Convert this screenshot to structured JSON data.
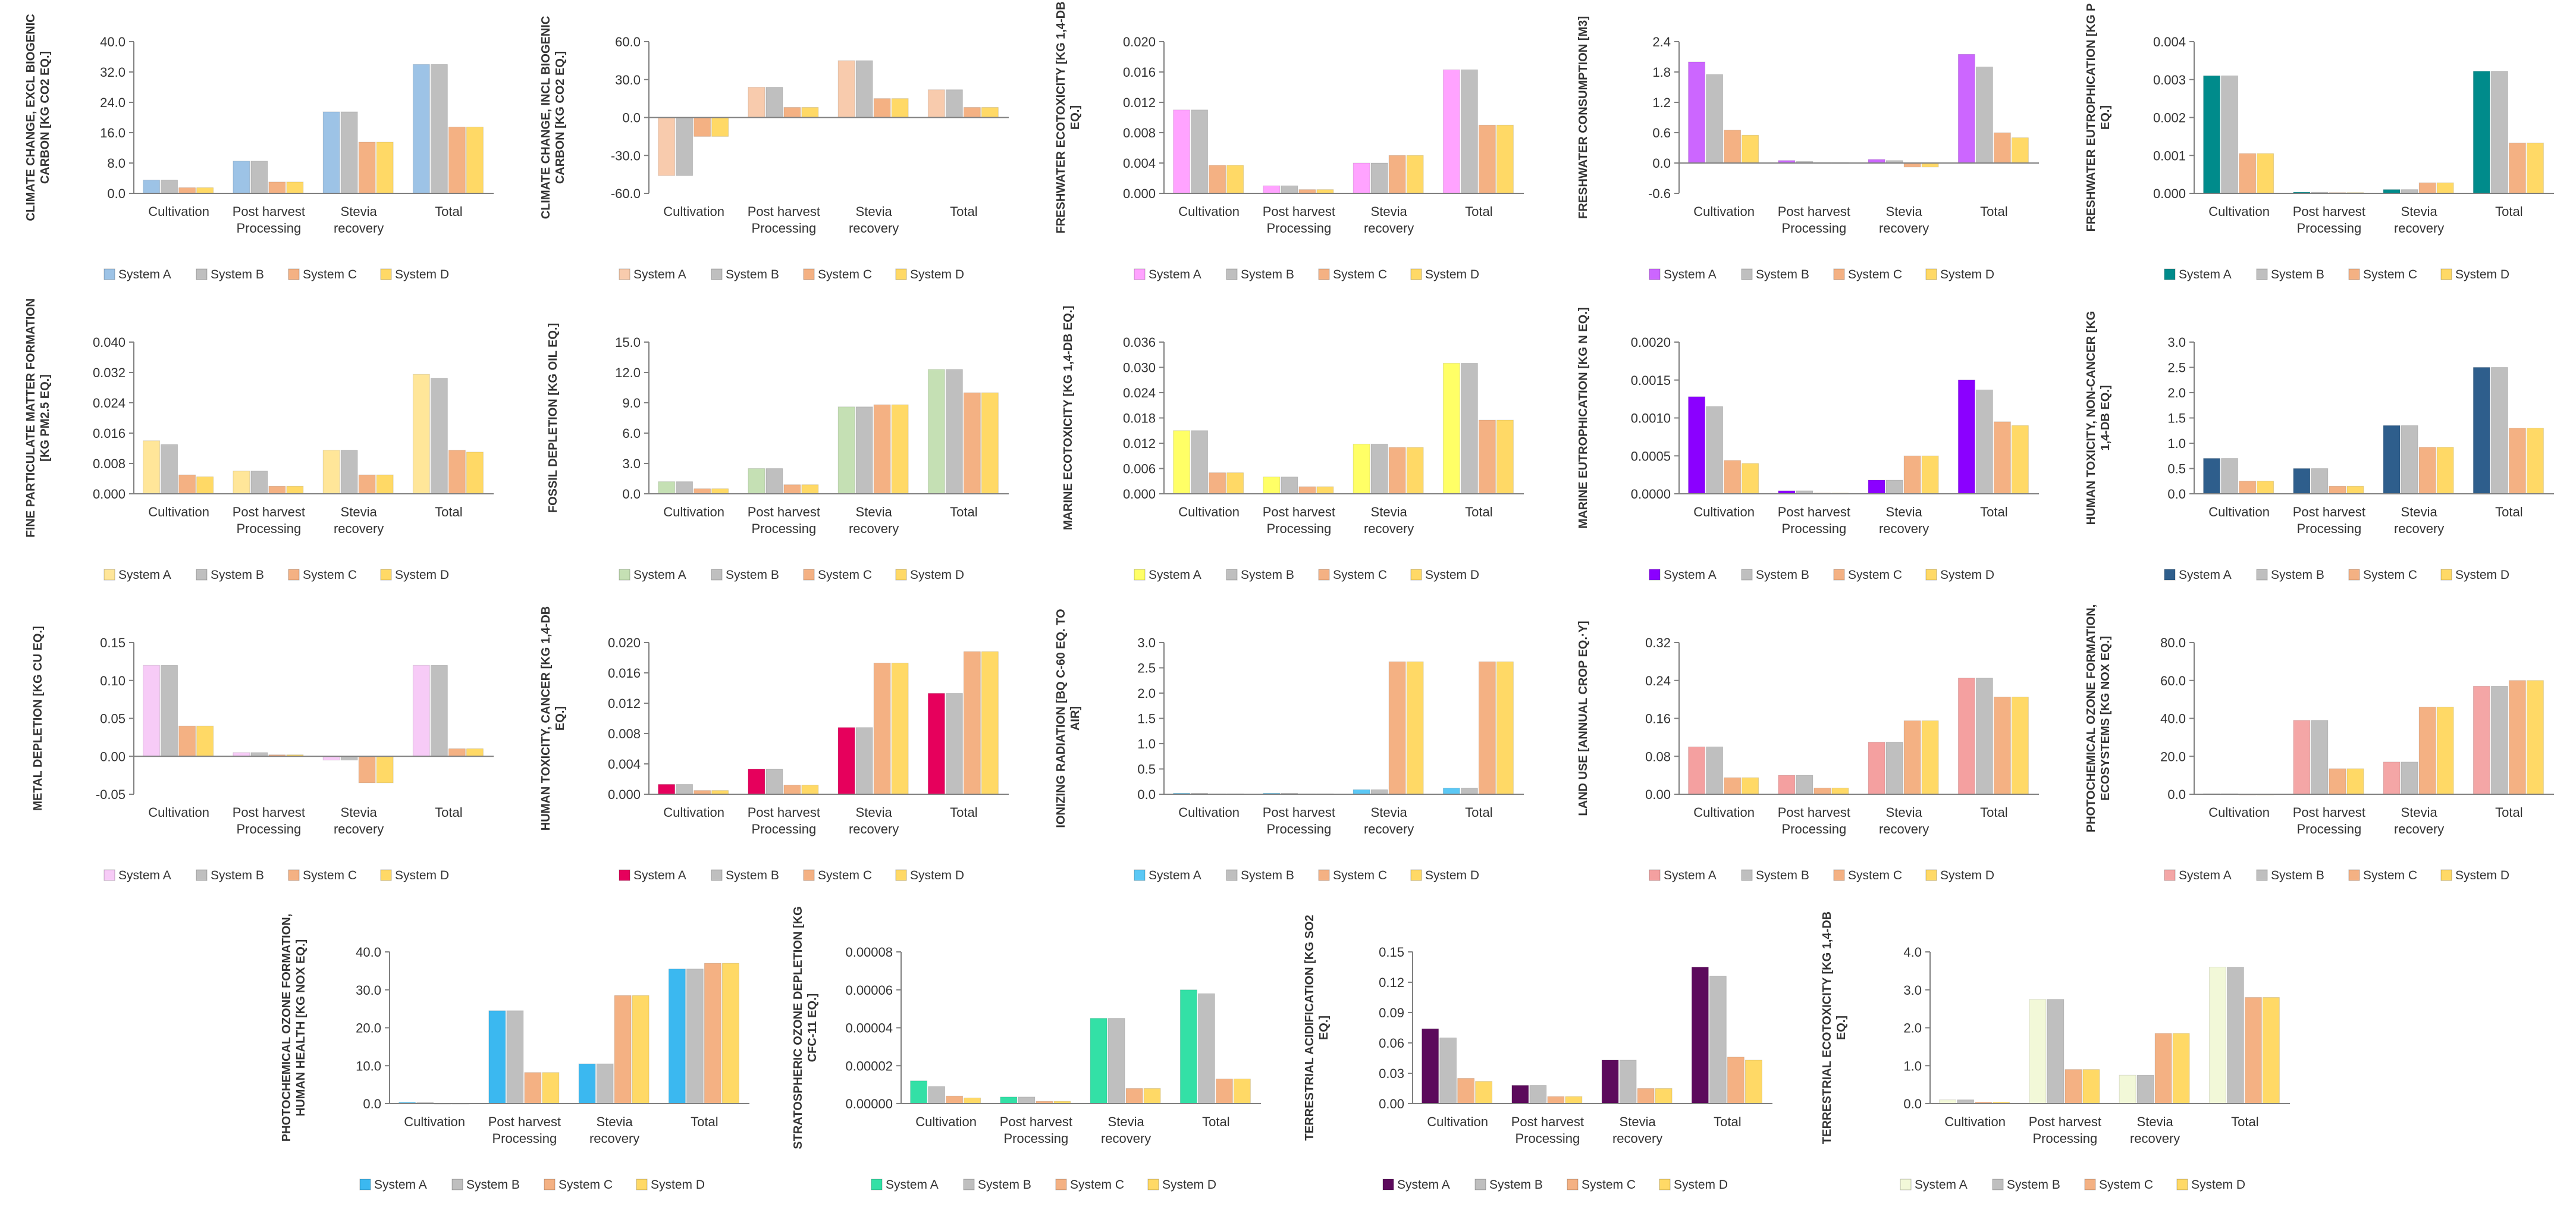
{
  "categories": [
    "Cultivation",
    "Post harvest Processing",
    "Stevia recovery",
    "Total"
  ],
  "series_names": [
    "System A",
    "System B",
    "System C",
    "System D"
  ],
  "chart_data": [
    {
      "type": "bar",
      "ylabel": "CLIMATE CHANGE, EXCL BIOGENIC CARBON [KG CO2 EQ.]",
      "ylim": [
        0,
        40
      ],
      "ticks": [
        "0.0",
        "8.0",
        "16.0",
        "24.0",
        "32.0",
        "40.0"
      ],
      "colors": [
        "#9DC3E6",
        "#BFBFBF",
        "#F4B183",
        "#FFD966"
      ],
      "series": [
        {
          "name": "System A",
          "values": [
            3.5,
            8.5,
            21.5,
            34
          ]
        },
        {
          "name": "System B",
          "values": [
            3.5,
            8.5,
            21.5,
            34
          ]
        },
        {
          "name": "System C",
          "values": [
            1.5,
            3,
            13.5,
            17.5
          ]
        },
        {
          "name": "System D",
          "values": [
            1.5,
            3,
            13.5,
            17.5
          ]
        }
      ]
    },
    {
      "type": "bar",
      "ylabel": "CLIMATE CHANGE, INCL BIOGENIC CARBON [KG CO2 EQ.]",
      "ylim": [
        -60,
        60
      ],
      "ticks": [
        "-60.0",
        "-30.0",
        "0.0",
        "30.0",
        "60.0"
      ],
      "colors": [
        "#F8CBAD",
        "#BFBFBF",
        "#F4B183",
        "#FFD966"
      ],
      "series": [
        {
          "name": "System A",
          "values": [
            -46,
            24,
            45,
            22
          ]
        },
        {
          "name": "System B",
          "values": [
            -46,
            24,
            45,
            22
          ]
        },
        {
          "name": "System C",
          "values": [
            -15,
            8,
            15,
            8
          ]
        },
        {
          "name": "System D",
          "values": [
            -15,
            8,
            15,
            8
          ]
        }
      ]
    },
    {
      "type": "bar",
      "ylabel": "FRESHWATER ECOTOXICITY [KG 1,4-DB EQ.]",
      "ylim": [
        0,
        0.02
      ],
      "ticks": [
        "0.000",
        "0.004",
        "0.008",
        "0.012",
        "0.016",
        "0.020"
      ],
      "colors": [
        "#FFA3FF",
        "#BFBFBF",
        "#F4B183",
        "#FFD966"
      ],
      "series": [
        {
          "name": "System A",
          "values": [
            0.011,
            0.001,
            0.004,
            0.0163
          ]
        },
        {
          "name": "System B",
          "values": [
            0.011,
            0.001,
            0.004,
            0.0163
          ]
        },
        {
          "name": "System C",
          "values": [
            0.0037,
            0.0005,
            0.005,
            0.009
          ]
        },
        {
          "name": "System D",
          "values": [
            0.0037,
            0.0005,
            0.005,
            0.009
          ]
        }
      ]
    },
    {
      "type": "bar",
      "ylabel": "FRESHWATER CONSUMPTION [M3]",
      "ylim": [
        -0.6,
        2.4
      ],
      "ticks": [
        "-0.6",
        "0.0",
        "0.6",
        "1.2",
        "1.8",
        "2.4"
      ],
      "colors": [
        "#CC66FF",
        "#BFBFBF",
        "#F4B183",
        "#FFD966"
      ],
      "series": [
        {
          "name": "System A",
          "values": [
            2,
            0.05,
            0.07,
            2.15
          ]
        },
        {
          "name": "System B",
          "values": [
            1.75,
            0.03,
            0.05,
            1.9
          ]
        },
        {
          "name": "System C",
          "values": [
            0.65,
            0.01,
            -0.08,
            0.6
          ]
        },
        {
          "name": "System D",
          "values": [
            0.55,
            0.01,
            -0.08,
            0.5
          ]
        }
      ]
    },
    {
      "type": "bar",
      "ylabel": "FRESHWATER EUTROPHICATION [KG P EQ.]",
      "ylim": [
        0,
        0.004
      ],
      "ticks": [
        "0.000",
        "0.001",
        "0.002",
        "0.003",
        "0.004"
      ],
      "colors": [
        "#008B8B",
        "#BFBFBF",
        "#F4B183",
        "#FFD966"
      ],
      "series": [
        {
          "name": "System A",
          "values": [
            0.0031,
            3e-05,
            0.0001,
            0.00322
          ]
        },
        {
          "name": "System B",
          "values": [
            0.0031,
            3e-05,
            0.0001,
            0.00322
          ]
        },
        {
          "name": "System C",
          "values": [
            0.00105,
            2e-05,
            0.00028,
            0.00133
          ]
        },
        {
          "name": "System D",
          "values": [
            0.00105,
            2e-05,
            0.00028,
            0.00133
          ]
        }
      ]
    },
    {
      "type": "bar",
      "ylabel": "FINE PARTICULATE MATTER FORMATION [KG PM2.5 EQ.]",
      "ylim": [
        0,
        0.04
      ],
      "ticks": [
        "0.000",
        "0.008",
        "0.016",
        "0.024",
        "0.032",
        "0.040"
      ],
      "colors": [
        "#FFE699",
        "#BFBFBF",
        "#F4B183",
        "#FFD966"
      ],
      "series": [
        {
          "name": "System A",
          "values": [
            0.014,
            0.006,
            0.0115,
            0.0315
          ]
        },
        {
          "name": "System B",
          "values": [
            0.013,
            0.006,
            0.0115,
            0.0305
          ]
        },
        {
          "name": "System C",
          "values": [
            0.005,
            0.002,
            0.005,
            0.0115
          ]
        },
        {
          "name": "System D",
          "values": [
            0.0045,
            0.002,
            0.005,
            0.011
          ]
        }
      ]
    },
    {
      "type": "bar",
      "ylabel": "FOSSIL DEPLETION [KG OIL EQ.]",
      "ylim": [
        0,
        15
      ],
      "ticks": [
        "0.0",
        "3.0",
        "6.0",
        "9.0",
        "12.0",
        "15.0"
      ],
      "colors": [
        "#C5E0B4",
        "#BFBFBF",
        "#F4B183",
        "#FFD966"
      ],
      "series": [
        {
          "name": "System A",
          "values": [
            1.2,
            2.5,
            8.6,
            12.3
          ]
        },
        {
          "name": "System B",
          "values": [
            1.2,
            2.5,
            8.6,
            12.3
          ]
        },
        {
          "name": "System C",
          "values": [
            0.5,
            0.9,
            8.8,
            10
          ]
        },
        {
          "name": "System D",
          "values": [
            0.5,
            0.9,
            8.8,
            10
          ]
        }
      ]
    },
    {
      "type": "bar",
      "ylabel": "MARINE ECOTOXICITY [KG 1,4-DB EQ.]",
      "ylim": [
        0,
        0.036
      ],
      "ticks": [
        "0.000",
        "0.006",
        "0.012",
        "0.018",
        "0.024",
        "0.030",
        "0.036"
      ],
      "colors": [
        "#FFFF66",
        "#BFBFBF",
        "#F4B183",
        "#FFD966"
      ],
      "series": [
        {
          "name": "System A",
          "values": [
            0.015,
            0.004,
            0.0118,
            0.031
          ]
        },
        {
          "name": "System B",
          "values": [
            0.015,
            0.004,
            0.0118,
            0.031
          ]
        },
        {
          "name": "System C",
          "values": [
            0.005,
            0.0017,
            0.011,
            0.0175
          ]
        },
        {
          "name": "System D",
          "values": [
            0.005,
            0.0017,
            0.011,
            0.0175
          ]
        }
      ]
    },
    {
      "type": "bar",
      "ylabel": "MARINE EUTROPHICATION [KG N EQ.]",
      "ylim": [
        0,
        0.002
      ],
      "ticks": [
        "0.0000",
        "0.0005",
        "0.0010",
        "0.0015",
        "0.0020"
      ],
      "colors": [
        "#8B00FF",
        "#BFBFBF",
        "#F4B183",
        "#FFD966"
      ],
      "series": [
        {
          "name": "System A",
          "values": [
            0.00128,
            4e-05,
            0.00018,
            0.0015
          ]
        },
        {
          "name": "System B",
          "values": [
            0.00115,
            4e-05,
            0.00018,
            0.00137
          ]
        },
        {
          "name": "System C",
          "values": [
            0.00044,
            1e-05,
            0.0005,
            0.00095
          ]
        },
        {
          "name": "System D",
          "values": [
            0.0004,
            1e-05,
            0.0005,
            0.0009
          ]
        }
      ]
    },
    {
      "type": "bar",
      "ylabel": "HUMAN TOXICITY, NON-CANCER [KG 1,4-DB EQ.]",
      "ylim": [
        0,
        3
      ],
      "ticks": [
        "0.0",
        "0.5",
        "1.0",
        "1.5",
        "2.0",
        "2.5",
        "3.0"
      ],
      "colors": [
        "#2E5E8C",
        "#BFBFBF",
        "#F4B183",
        "#FFD966"
      ],
      "series": [
        {
          "name": "System A",
          "values": [
            0.7,
            0.5,
            1.35,
            2.5
          ]
        },
        {
          "name": "System B",
          "values": [
            0.7,
            0.5,
            1.35,
            2.5
          ]
        },
        {
          "name": "System C",
          "values": [
            0.25,
            0.15,
            0.92,
            1.3
          ]
        },
        {
          "name": "System D",
          "values": [
            0.25,
            0.15,
            0.92,
            1.3
          ]
        }
      ]
    },
    {
      "type": "bar",
      "ylabel": "METAL DEPLETION [KG CU EQ.]",
      "ylim": [
        -0.05,
        0.15
      ],
      "ticks": [
        "-0.05",
        "0.00",
        "0.05",
        "0.10",
        "0.15"
      ],
      "colors": [
        "#F7CBF7",
        "#BFBFBF",
        "#F4B183",
        "#FFD966"
      ],
      "series": [
        {
          "name": "System A",
          "values": [
            0.12,
            0.005,
            -0.005,
            0.12
          ]
        },
        {
          "name": "System B",
          "values": [
            0.12,
            0.005,
            -0.005,
            0.12
          ]
        },
        {
          "name": "System C",
          "values": [
            0.04,
            0.002,
            -0.035,
            0.01
          ]
        },
        {
          "name": "System D",
          "values": [
            0.04,
            0.002,
            -0.035,
            0.01
          ]
        }
      ]
    },
    {
      "type": "bar",
      "ylabel": "HUMAN TOXICITY, CANCER [KG 1,4-DB EQ.]",
      "ylim": [
        0,
        0.02
      ],
      "ticks": [
        "0.000",
        "0.004",
        "0.008",
        "0.012",
        "0.016",
        "0.020"
      ],
      "colors": [
        "#E6005C",
        "#BFBFBF",
        "#F4B183",
        "#FFD966"
      ],
      "series": [
        {
          "name": "System A",
          "values": [
            0.0013,
            0.0033,
            0.0088,
            0.0133
          ]
        },
        {
          "name": "System B",
          "values": [
            0.0013,
            0.0033,
            0.0088,
            0.0133
          ]
        },
        {
          "name": "System C",
          "values": [
            0.0005,
            0.0012,
            0.0173,
            0.0188
          ]
        },
        {
          "name": "System D",
          "values": [
            0.0005,
            0.0012,
            0.0173,
            0.0188
          ]
        }
      ]
    },
    {
      "type": "bar",
      "ylabel": "IONIZING RADIATION [BQ C-60 EQ. TO AIR]",
      "ylim": [
        0,
        3
      ],
      "ticks": [
        "0.0",
        "0.5",
        "1.0",
        "1.5",
        "2.0",
        "2.5",
        "3.0"
      ],
      "colors": [
        "#5BC8F5",
        "#BFBFBF",
        "#F4B183",
        "#FFD966"
      ],
      "series": [
        {
          "name": "System A",
          "values": [
            0.02,
            0.02,
            0.09,
            0.12
          ]
        },
        {
          "name": "System B",
          "values": [
            0.02,
            0.02,
            0.09,
            0.12
          ]
        },
        {
          "name": "System C",
          "values": [
            0.01,
            0.01,
            2.62,
            2.62
          ]
        },
        {
          "name": "System D",
          "values": [
            0.01,
            0.01,
            2.62,
            2.62
          ]
        }
      ]
    },
    {
      "type": "bar",
      "ylabel": "LAND USE [ANNUAL CROP EQ.·Y]",
      "ylim": [
        0,
        0.32
      ],
      "ticks": [
        "0.00",
        "0.08",
        "0.16",
        "0.24",
        "0.32"
      ],
      "colors": [
        "#F4A0A0",
        "#BFBFBF",
        "#F4B183",
        "#FFD966"
      ],
      "series": [
        {
          "name": "System A",
          "values": [
            0.1,
            0.04,
            0.11,
            0.245
          ]
        },
        {
          "name": "System B",
          "values": [
            0.1,
            0.04,
            0.11,
            0.245
          ]
        },
        {
          "name": "System C",
          "values": [
            0.035,
            0.013,
            0.155,
            0.205
          ]
        },
        {
          "name": "System D",
          "values": [
            0.035,
            0.013,
            0.155,
            0.205
          ]
        }
      ]
    },
    {
      "type": "bar",
      "ylabel": "PHOTOCHEMICAL OZONE FORMATION, ECOSYSTEMS [KG NOX EQ.]",
      "ylim": [
        0,
        80
      ],
      "ticks": [
        "0.0",
        "20.0",
        "40.0",
        "60.0",
        "80.0"
      ],
      "colors": [
        "#F4A6A6",
        "#BFBFBF",
        "#F4B183",
        "#FFD966"
      ],
      "series": [
        {
          "name": "System A",
          "values": [
            0.3,
            39,
            17,
            57
          ]
        },
        {
          "name": "System B",
          "values": [
            0.3,
            39,
            17,
            57
          ]
        },
        {
          "name": "System C",
          "values": [
            0.1,
            13.5,
            46,
            60
          ]
        },
        {
          "name": "System D",
          "values": [
            0.1,
            13.5,
            46,
            60
          ]
        }
      ]
    },
    {
      "type": "bar",
      "ylabel": "PHOTOCHEMICAL OZONE FORMATION, HUMAN HEALTH [KG NOX EQ.]",
      "ylim": [
        0,
        40
      ],
      "ticks": [
        "0.0",
        "10.0",
        "20.0",
        "30.0",
        "40.0"
      ],
      "colors": [
        "#3BB8F0",
        "#BFBFBF",
        "#F4B183",
        "#FFD966"
      ],
      "series": [
        {
          "name": "System A",
          "values": [
            0.3,
            24.5,
            10.5,
            35.5
          ]
        },
        {
          "name": "System B",
          "values": [
            0.3,
            24.5,
            10.5,
            35.5
          ]
        },
        {
          "name": "System C",
          "values": [
            0.1,
            8.2,
            28.5,
            37
          ]
        },
        {
          "name": "System D",
          "values": [
            0.1,
            8.2,
            28.5,
            37
          ]
        }
      ]
    },
    {
      "type": "bar",
      "ylabel": "STRATOSPHERIC OZONE DEPLETION [KG CFC-11 EQ.]",
      "ylim": [
        0,
        8e-05
      ],
      "ticks": [
        "0.00000",
        "0.00002",
        "0.00004",
        "0.00006",
        "0.00008"
      ],
      "colors": [
        "#33E0A6",
        "#BFBFBF",
        "#F4B183",
        "#FFD966"
      ],
      "series": [
        {
          "name": "System A",
          "values": [
            1.2e-05,
            3.5e-06,
            4.5e-05,
            6e-05
          ]
        },
        {
          "name": "System B",
          "values": [
            9e-06,
            3.5e-06,
            4.5e-05,
            5.8e-05
          ]
        },
        {
          "name": "System C",
          "values": [
            4e-06,
            1.2e-06,
            8e-06,
            1.3e-05
          ]
        },
        {
          "name": "System D",
          "values": [
            3e-06,
            1.2e-06,
            8e-06,
            1.3e-05
          ]
        }
      ]
    },
    {
      "type": "bar",
      "ylabel": "TERRESTRIAL ACIDIFICATION [KG SO2 EQ.]",
      "ylim": [
        0,
        0.15
      ],
      "ticks": [
        "0.00",
        "0.03",
        "0.06",
        "0.09",
        "0.12",
        "0.15"
      ],
      "colors": [
        "#5C0A5C",
        "#BFBFBF",
        "#F4B183",
        "#FFD966"
      ],
      "series": [
        {
          "name": "System A",
          "values": [
            0.074,
            0.018,
            0.043,
            0.135
          ]
        },
        {
          "name": "System B",
          "values": [
            0.065,
            0.018,
            0.043,
            0.126
          ]
        },
        {
          "name": "System C",
          "values": [
            0.025,
            0.007,
            0.015,
            0.046
          ]
        },
        {
          "name": "System D",
          "values": [
            0.022,
            0.007,
            0.015,
            0.043
          ]
        }
      ]
    },
    {
      "type": "bar",
      "ylabel": "TERRESTRIAL ECOTOXICITY [KG 1,4-DB EQ.]",
      "ylim": [
        0,
        4
      ],
      "ticks": [
        "0.0",
        "1.0",
        "2.0",
        "3.0",
        "4.0"
      ],
      "colors": [
        "#F2F8D8",
        "#BFBFBF",
        "#F4B183",
        "#FFD966"
      ],
      "series": [
        {
          "name": "System A",
          "values": [
            0.1,
            2.75,
            0.75,
            3.6
          ]
        },
        {
          "name": "System B",
          "values": [
            0.1,
            2.75,
            0.75,
            3.6
          ]
        },
        {
          "name": "System C",
          "values": [
            0.04,
            0.9,
            1.85,
            2.8
          ]
        },
        {
          "name": "System D",
          "values": [
            0.04,
            0.9,
            1.85,
            2.8
          ]
        }
      ]
    }
  ]
}
